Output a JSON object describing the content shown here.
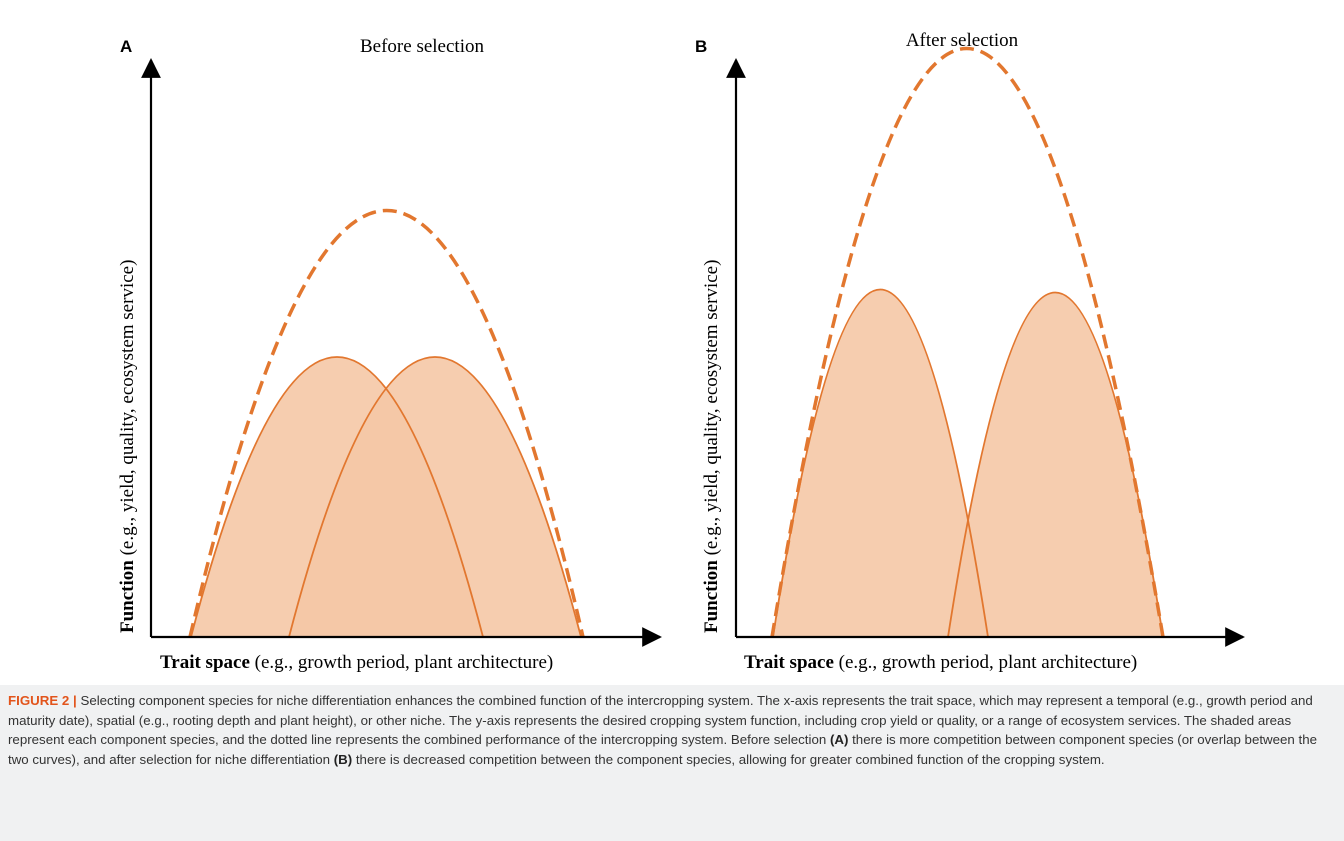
{
  "panels": [
    {
      "letter": "A",
      "title": "Before selection",
      "x_label_bold": "Trait space",
      "x_label_rest": " (e.g., growth period, plant architecture)",
      "y_label_bold": "Function",
      "y_label_rest": " (e.g., yield, quality, ecosystem service)"
    },
    {
      "letter": "B",
      "title": "After selection",
      "x_label_bold": "Trait space",
      "x_label_rest": " (e.g., growth period, plant architecture)",
      "y_label_bold": "Function",
      "y_label_rest": " (e.g., yield, quality, ecosystem service)"
    }
  ],
  "colors": {
    "curve": "#e2772f",
    "fill": "#f5c8a6",
    "axis": "#000000",
    "caption_label": "#e2541b",
    "caption_bg": "#f0f1f2"
  },
  "caption": {
    "label": "FIGURE 2 |",
    "part1": " Selecting component species for niche differentiation enhances the combined function of the intercropping system. The x-axis represents the trait space, which may represent a temporal (e.g., growth period and maturity date), spatial (e.g., rooting depth and plant height), or other niche. The y-axis represents the desired cropping system function, including crop yield or quality, or a range of ecosystem services. The shaded areas represent each component species, and the dotted line represents the combined performance of the intercropping system. Before selection ",
    "ref_a": "(A)",
    "part2": " there is more competition between component species (or overlap between the two curves), and after selection for niche differentiation ",
    "ref_b": "(B)",
    "part3": " there is decreased competition between the component species, allowing for greater combined function of the cropping system."
  }
}
